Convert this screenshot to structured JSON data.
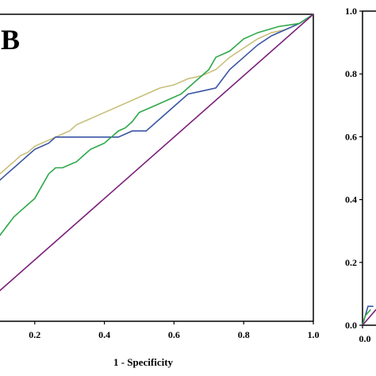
{
  "chart_data": [
    {
      "type": "line",
      "panel_label": "B",
      "xlabel": "1 - Specificity",
      "ylabel": "",
      "xlim": [
        0,
        1
      ],
      "ylim": [
        0,
        1
      ],
      "x_ticks": [
        "0.2",
        "0.4",
        "0.6",
        "0.8",
        "1.0"
      ],
      "legend": "none",
      "grid": false,
      "series": [
        {
          "color": "#c8c07a",
          "points": [
            [
              0,
              0.33
            ],
            [
              0.02,
              0.35
            ],
            [
              0.04,
              0.41
            ],
            [
              0.06,
              0.43
            ],
            [
              0.08,
              0.46
            ],
            [
              0.1,
              0.48
            ],
            [
              0.12,
              0.5
            ],
            [
              0.14,
              0.52
            ],
            [
              0.16,
              0.54
            ],
            [
              0.18,
              0.55
            ],
            [
              0.2,
              0.57
            ],
            [
              0.22,
              0.58
            ],
            [
              0.24,
              0.59
            ],
            [
              0.26,
              0.6
            ],
            [
              0.28,
              0.61
            ],
            [
              0.3,
              0.62
            ],
            [
              0.32,
              0.64
            ],
            [
              0.34,
              0.65
            ],
            [
              0.36,
              0.66
            ],
            [
              0.38,
              0.67
            ],
            [
              0.4,
              0.68
            ],
            [
              0.44,
              0.7
            ],
            [
              0.48,
              0.72
            ],
            [
              0.52,
              0.74
            ],
            [
              0.56,
              0.76
            ],
            [
              0.6,
              0.77
            ],
            [
              0.64,
              0.79
            ],
            [
              0.68,
              0.8
            ],
            [
              0.72,
              0.82
            ],
            [
              0.76,
              0.86
            ],
            [
              0.8,
              0.89
            ],
            [
              0.84,
              0.92
            ],
            [
              0.88,
              0.94
            ],
            [
              0.92,
              0.95
            ],
            [
              0.96,
              0.97
            ],
            [
              1.0,
              1.0
            ]
          ]
        },
        {
          "color": "#3a55a4",
          "points": [
            [
              0,
              0.3
            ],
            [
              0.02,
              0.33
            ],
            [
              0.04,
              0.38
            ],
            [
              0.06,
              0.41
            ],
            [
              0.08,
              0.44
            ],
            [
              0.1,
              0.46
            ],
            [
              0.12,
              0.48
            ],
            [
              0.14,
              0.5
            ],
            [
              0.16,
              0.52
            ],
            [
              0.18,
              0.54
            ],
            [
              0.2,
              0.56
            ],
            [
              0.22,
              0.57
            ],
            [
              0.24,
              0.58
            ],
            [
              0.26,
              0.6
            ],
            [
              0.28,
              0.6
            ],
            [
              0.32,
              0.6
            ],
            [
              0.36,
              0.6
            ],
            [
              0.4,
              0.6
            ],
            [
              0.44,
              0.6
            ],
            [
              0.48,
              0.62
            ],
            [
              0.52,
              0.62
            ],
            [
              0.56,
              0.66
            ],
            [
              0.6,
              0.7
            ],
            [
              0.64,
              0.74
            ],
            [
              0.68,
              0.75
            ],
            [
              0.72,
              0.76
            ],
            [
              0.76,
              0.82
            ],
            [
              0.8,
              0.86
            ],
            [
              0.84,
              0.9
            ],
            [
              0.88,
              0.93
            ],
            [
              0.92,
              0.95
            ],
            [
              0.96,
              0.97
            ],
            [
              1.0,
              1.0
            ]
          ]
        },
        {
          "color": "#2ea84a",
          "points": [
            [
              0,
              0.11
            ],
            [
              0.02,
              0.11
            ],
            [
              0.04,
              0.18
            ],
            [
              0.06,
              0.21
            ],
            [
              0.08,
              0.25
            ],
            [
              0.1,
              0.28
            ],
            [
              0.12,
              0.31
            ],
            [
              0.14,
              0.34
            ],
            [
              0.16,
              0.36
            ],
            [
              0.18,
              0.38
            ],
            [
              0.2,
              0.4
            ],
            [
              0.22,
              0.44
            ],
            [
              0.24,
              0.48
            ],
            [
              0.26,
              0.5
            ],
            [
              0.28,
              0.5
            ],
            [
              0.3,
              0.51
            ],
            [
              0.32,
              0.52
            ],
            [
              0.34,
              0.54
            ],
            [
              0.36,
              0.56
            ],
            [
              0.38,
              0.57
            ],
            [
              0.4,
              0.58
            ],
            [
              0.42,
              0.6
            ],
            [
              0.44,
              0.62
            ],
            [
              0.46,
              0.63
            ],
            [
              0.48,
              0.65
            ],
            [
              0.5,
              0.68
            ],
            [
              0.54,
              0.7
            ],
            [
              0.58,
              0.72
            ],
            [
              0.62,
              0.74
            ],
            [
              0.66,
              0.78
            ],
            [
              0.7,
              0.82
            ],
            [
              0.72,
              0.86
            ],
            [
              0.76,
              0.88
            ],
            [
              0.8,
              0.92
            ],
            [
              0.84,
              0.94
            ],
            [
              0.9,
              0.96
            ],
            [
              0.96,
              0.97
            ],
            [
              1.0,
              1.0
            ]
          ]
        },
        {
          "color": "#7a1f7a",
          "points": [
            [
              0,
              0
            ],
            [
              1,
              1
            ]
          ]
        }
      ]
    },
    {
      "type": "line",
      "ylim": [
        0,
        1
      ],
      "y_ticks": [
        "0.0",
        "0.2",
        "0.4",
        "0.6",
        "0.8",
        "1.0"
      ],
      "x_ticks": [
        "0.0"
      ],
      "series": [
        {
          "color": "#3a55a4",
          "points": [
            [
              0,
              0
            ],
            [
              0.02,
              0.06
            ],
            [
              0.04,
              0.06
            ]
          ]
        },
        {
          "color": "#2ea84a",
          "points": [
            [
              0,
              0
            ],
            [
              0.01,
              0.03
            ],
            [
              0.03,
              0.05
            ]
          ]
        },
        {
          "color": "#7a1f7a",
          "points": [
            [
              0,
              0
            ],
            [
              0.05,
              0.05
            ]
          ]
        }
      ]
    }
  ]
}
